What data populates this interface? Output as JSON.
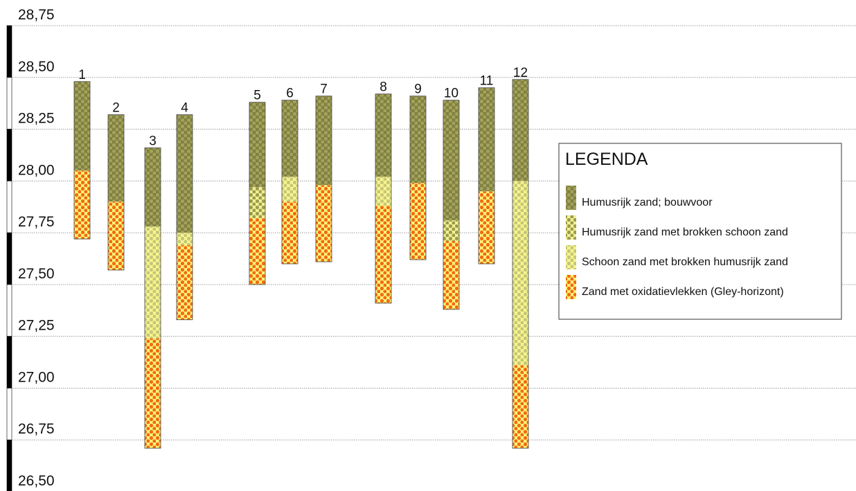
{
  "chart_data": {
    "type": "bar",
    "subtype": "stratigraphic borehole columns",
    "y_unit": "",
    "ylim": [
      26.5,
      28.75
    ],
    "yticks": [
      "28,75",
      "28,50",
      "28,25",
      "28,00",
      "27,75",
      "27,50",
      "27,25",
      "27,00",
      "26,75",
      "26,50"
    ],
    "grid": true,
    "legend": {
      "title": "LEGENDA",
      "placement": "right",
      "items": [
        {
          "key": "humus",
          "label": "Humusrijk zand; bouwvoor",
          "bg": "#808040",
          "dot": "#a3a35c"
        },
        {
          "key": "humus_schoon",
          "label": "Humusrijk zand met brokken schoon zand",
          "bg": "#f3f08f",
          "dot": "#9b9b52"
        },
        {
          "key": "schoon_humus",
          "label": "Schoon zand met brokken humusrijk zand",
          "bg": "#f7f48c",
          "dot": "#c6c67a"
        },
        {
          "key": "gley",
          "label": "Zand met oxidatievlekken (Gley-horizont)",
          "bg": "#f9f17a",
          "dot": "#f26b0f"
        }
      ]
    },
    "boreholes": [
      {
        "label": "1",
        "top": 28.48,
        "layers": [
          {
            "type": "humus",
            "bottom": 28.05
          },
          {
            "type": "gley",
            "bottom": 27.72
          }
        ]
      },
      {
        "label": "2",
        "top": 28.32,
        "layers": [
          {
            "type": "humus",
            "bottom": 27.9
          },
          {
            "type": "gley",
            "bottom": 27.57
          }
        ]
      },
      {
        "label": "3",
        "top": 28.16,
        "layers": [
          {
            "type": "humus",
            "bottom": 27.78
          },
          {
            "type": "schoon_humus",
            "bottom": 27.24
          },
          {
            "type": "gley",
            "bottom": 26.71
          }
        ]
      },
      {
        "label": "4",
        "top": 28.32,
        "layers": [
          {
            "type": "humus",
            "bottom": 27.75
          },
          {
            "type": "schoon_humus",
            "bottom": 27.69
          },
          {
            "type": "gley",
            "bottom": 27.33
          }
        ]
      },
      {
        "label": "5",
        "top": 28.38,
        "layers": [
          {
            "type": "humus",
            "bottom": 27.97
          },
          {
            "type": "humus_schoon",
            "bottom": 27.82
          },
          {
            "type": "gley",
            "bottom": 27.5
          }
        ]
      },
      {
        "label": "6",
        "top": 28.39,
        "layers": [
          {
            "type": "humus",
            "bottom": 28.02
          },
          {
            "type": "schoon_humus",
            "bottom": 27.9
          },
          {
            "type": "gley",
            "bottom": 27.6
          }
        ]
      },
      {
        "label": "7",
        "top": 28.41,
        "layers": [
          {
            "type": "humus",
            "bottom": 27.98
          },
          {
            "type": "gley",
            "bottom": 27.61
          }
        ]
      },
      {
        "label": "8",
        "top": 28.42,
        "layers": [
          {
            "type": "humus",
            "bottom": 28.02
          },
          {
            "type": "schoon_humus",
            "bottom": 27.88
          },
          {
            "type": "gley",
            "bottom": 27.41
          }
        ]
      },
      {
        "label": "9",
        "top": 28.41,
        "layers": [
          {
            "type": "humus",
            "bottom": 27.99
          },
          {
            "type": "gley",
            "bottom": 27.62
          }
        ]
      },
      {
        "label": "10",
        "top": 28.39,
        "layers": [
          {
            "type": "humus",
            "bottom": 27.81
          },
          {
            "type": "humus_schoon",
            "bottom": 27.71
          },
          {
            "type": "gley",
            "bottom": 27.38
          }
        ]
      },
      {
        "label": "11",
        "top": 28.45,
        "layers": [
          {
            "type": "humus",
            "bottom": 27.95
          },
          {
            "type": "gley",
            "bottom": 27.6
          }
        ]
      },
      {
        "label": "12",
        "top": 28.49,
        "layers": [
          {
            "type": "humus",
            "bottom": 28.0
          },
          {
            "type": "schoon_humus",
            "bottom": 27.11
          },
          {
            "type": "gley",
            "bottom": 26.71
          }
        ]
      }
    ]
  }
}
